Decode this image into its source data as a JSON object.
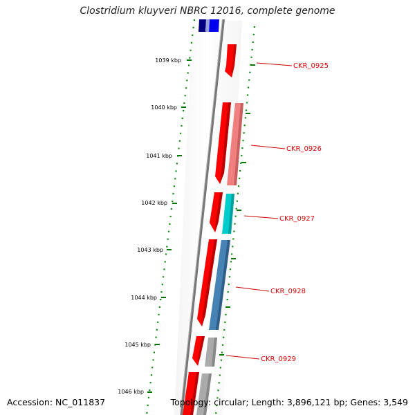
{
  "title": "Clostridium kluyveri NBRC 12016, complete genome",
  "accession_label": "Accession: NC_011837",
  "summary_label": "Topology: circular; Length: 3,896,121 bp; Genes: 3,549",
  "ruler_ticks": [
    "1039 kbp",
    "1040 kbp",
    "1041 kbp",
    "1042 kbp",
    "1043 kbp",
    "1044 kbp",
    "1045 kbp",
    "1046 kbp"
  ],
  "gene_labels": [
    "CKR_0925",
    "CKR_0926",
    "CKR_0927",
    "CKR_0928",
    "CKR_0929"
  ],
  "colors": {
    "label_red": "#dd0000",
    "gene_red": "#ff0000",
    "gene_pink": "#f08080",
    "gene_cyan": "#00cccc",
    "gene_steelblue": "#4682b4",
    "gene_gray": "#aaaaaa",
    "gene_blue": "#0000ee",
    "gene_navy": "#000080",
    "tick_green": "#007700"
  }
}
